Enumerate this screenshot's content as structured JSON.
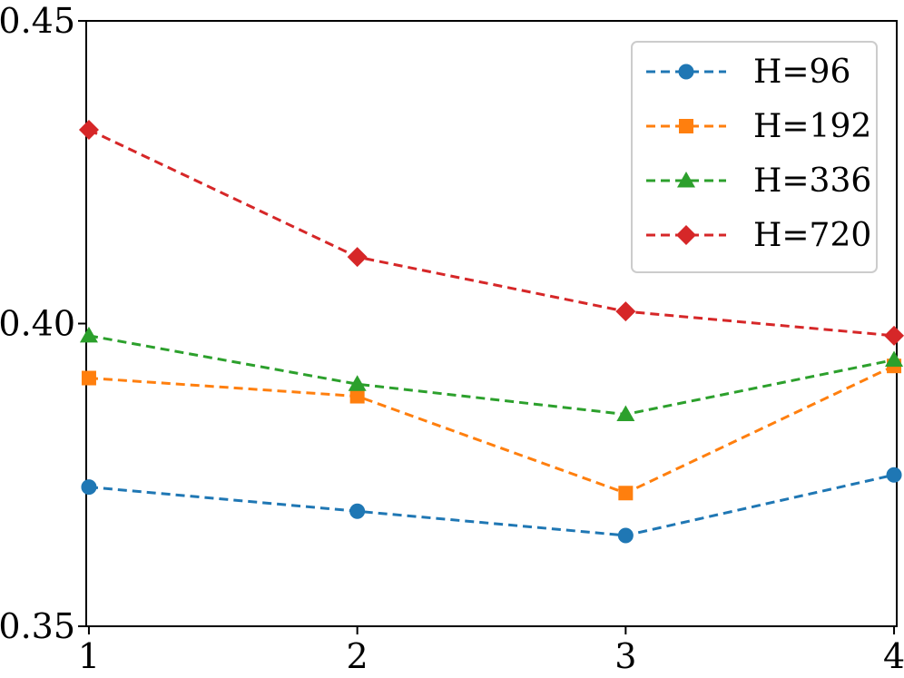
{
  "chart_data": {
    "type": "line",
    "title": "",
    "xlabel": "",
    "ylabel": "",
    "x": [
      1,
      2,
      3,
      4
    ],
    "xticks": [
      "1",
      "2",
      "3",
      "4"
    ],
    "xlim": [
      0.99,
      4.01
    ],
    "ylim": [
      0.35,
      0.45
    ],
    "yticks": [
      "0.35",
      "0.40",
      "0.45"
    ],
    "grid": false,
    "legend_position": "top-right",
    "series": [
      {
        "name": "H=96",
        "values": [
          0.373,
          0.369,
          0.365,
          0.375
        ],
        "color": "#1f77b4",
        "marker": "circle"
      },
      {
        "name": "H=192",
        "values": [
          0.391,
          0.388,
          0.372,
          0.393
        ],
        "color": "#ff7f0e",
        "marker": "square"
      },
      {
        "name": "H=336",
        "values": [
          0.398,
          0.39,
          0.385,
          0.394
        ],
        "color": "#2ca02c",
        "marker": "triangle"
      },
      {
        "name": "H=720",
        "values": [
          0.432,
          0.411,
          0.402,
          0.398
        ],
        "color": "#d62728",
        "marker": "diamond"
      }
    ]
  }
}
